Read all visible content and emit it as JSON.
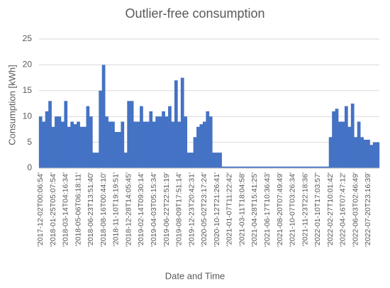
{
  "chart_data": {
    "type": "bar",
    "title": "Outlier-free consumption",
    "x_label": "Date and Time",
    "y_label": "Consumption [kWh]",
    "color": "#4472c4",
    "grid": true,
    "ylim": [
      0,
      25
    ],
    "yticks": [
      0,
      5,
      10,
      15,
      20,
      25
    ],
    "categories": [
      "'2017-12-02T00:06:54'",
      null,
      null,
      null,
      "'2018-01-25T05:07:54'",
      null,
      null,
      null,
      "'2018-03-14T04:16:34'",
      null,
      null,
      null,
      "'2018-05-06T06:18:11'",
      null,
      null,
      null,
      "'2018-06-23T13:51:40'",
      null,
      null,
      null,
      "'2018-08-16T00:44:10'",
      null,
      null,
      null,
      "'2018-11-10T19:19:51'",
      null,
      null,
      null,
      "'2018-12-28T14:05:45'",
      null,
      null,
      null,
      "'2019-02-14T09:30:14'",
      null,
      null,
      null,
      "'2019-04-03T05:15:34'",
      null,
      null,
      null,
      "'2019-06-22T22:51:19'",
      null,
      null,
      null,
      "'2019-08-09T17:51:14'",
      null,
      null,
      null,
      "'2019-12-23T20:42:31'",
      null,
      null,
      null,
      "'2020-05-02T23:17:24'",
      null,
      null,
      null,
      "'2020-10-12T21:26:41'",
      null,
      null,
      null,
      "'2021-01-07T11:22:42'",
      null,
      null,
      null,
      "'2021-03-11T18:04:58'",
      null,
      null,
      null,
      "'2021-04-28T15:41:25'",
      null,
      null,
      null,
      "'2021-06-17T10:36:43'",
      null,
      null,
      null,
      "'2021-08-20T07:49:49'",
      null,
      null,
      null,
      "'2021-10-07T03:26:34'",
      null,
      null,
      null,
      "'2021-11-23T22:18:36'",
      null,
      null,
      null,
      "'2022-01-10T17:03:57'",
      null,
      null,
      null,
      "'2022-02-27T10:01:42'",
      null,
      null,
      null,
      "'2022-04-16T07:47:12'",
      null,
      null,
      null,
      "'2022-06-03T02:46:49'",
      null,
      null,
      null,
      "'2022-07-20T23:16:39'",
      null,
      null,
      null
    ],
    "values": [
      10,
      9,
      11,
      13,
      8,
      10,
      10,
      9,
      13,
      8,
      9,
      8.5,
      9,
      8,
      8,
      12,
      10,
      3,
      3,
      15,
      20,
      10,
      9,
      9,
      7,
      7,
      9,
      3,
      13,
      13,
      9,
      9,
      12,
      9,
      9,
      11,
      9,
      10,
      10,
      11,
      10,
      12,
      9,
      17,
      9,
      17.5,
      10,
      3,
      3,
      6,
      8,
      8.5,
      9,
      11,
      10,
      3,
      3,
      3,
      0.3,
      0.3,
      0.3,
      0.3,
      0.3,
      0.3,
      0.3,
      0.3,
      0.3,
      0.3,
      0.3,
      0.3,
      0.3,
      0.3,
      0.3,
      0.3,
      0.3,
      0.3,
      0.3,
      0.3,
      0.3,
      0.3,
      0.3,
      0.3,
      0.3,
      0.3,
      0.3,
      0.3,
      0.3,
      0.3,
      0.3,
      0.3,
      0.3,
      0.3,
      6,
      11,
      11.5,
      9,
      9,
      12,
      8,
      12.5,
      6,
      9,
      6,
      5.5,
      5.5,
      4.5,
      5,
      5
    ]
  }
}
